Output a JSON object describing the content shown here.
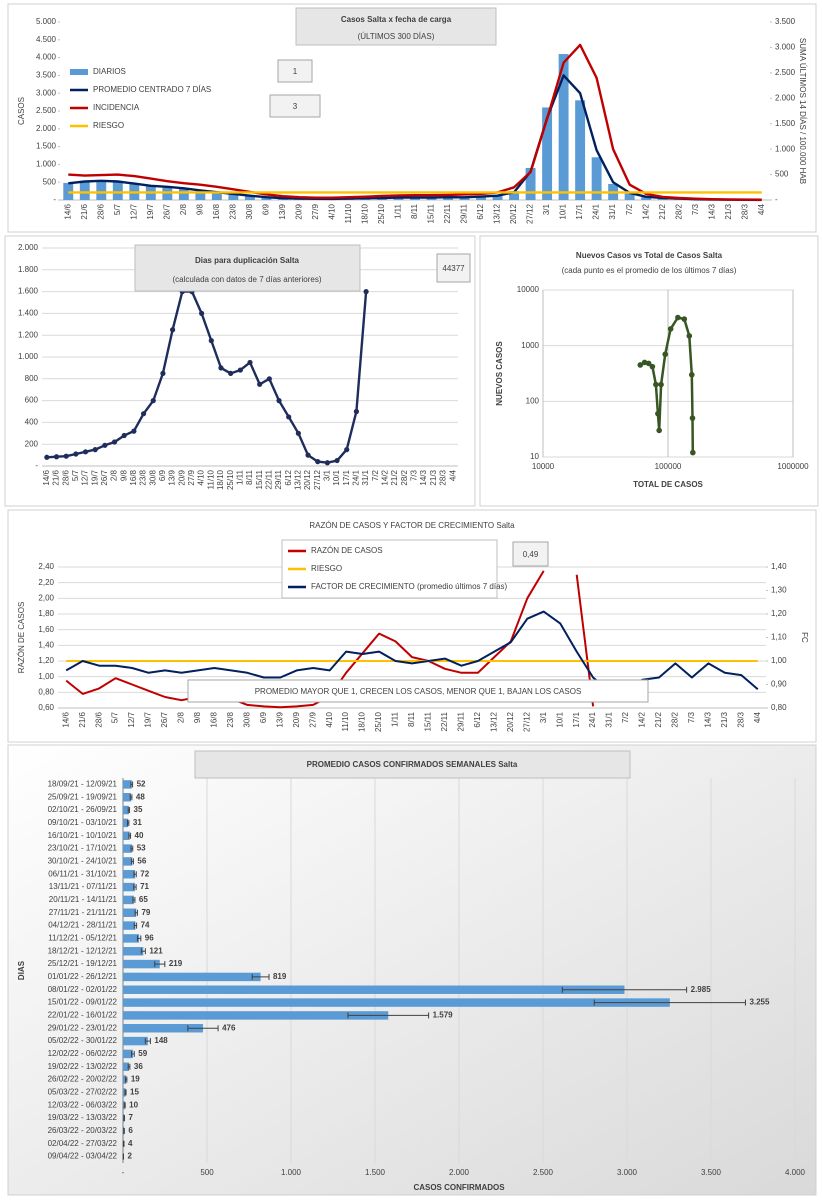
{
  "chart_data": [
    {
      "type": "combo",
      "title": "Casos Salta x fecha de carga",
      "subtitle": "(ÚLTIMOS 300 DÍAS)",
      "y_label": "CASOS",
      "y2_label": "SUMA ÚLTIMOS 14 DÍAS / 100.000 HAB",
      "annotations": [
        "1",
        "3"
      ],
      "categories": [
        "14/6",
        "21/6",
        "28/6",
        "5/7",
        "12/7",
        "19/7",
        "26/7",
        "2/8",
        "9/8",
        "16/8",
        "23/8",
        "30/8",
        "6/9",
        "13/9",
        "20/9",
        "27/9",
        "4/10",
        "11/10",
        "18/10",
        "25/10",
        "1/11",
        "8/11",
        "15/11",
        "22/11",
        "29/11",
        "6/12",
        "13/12",
        "20/12",
        "27/12",
        "3/1",
        "10/1",
        "17/1",
        "24/1",
        "31/1",
        "7/2",
        "14/2",
        "21/2",
        "28/2",
        "7/3",
        "14/3",
        "21/3",
        "28/3",
        "4/4"
      ],
      "ylim": [
        0,
        5000
      ],
      "yticks": [
        {
          "value": 0,
          "label": "-"
        },
        500,
        {
          "value": 1000,
          "label": "1.000"
        },
        {
          "value": 1500,
          "label": "1.500"
        },
        {
          "value": 2000,
          "label": "2.000"
        },
        {
          "value": 2500,
          "label": "2.500"
        },
        {
          "value": 3000,
          "label": "3.000"
        },
        {
          "value": 3500,
          "label": "3.500"
        },
        {
          "value": 4000,
          "label": "4.000"
        },
        {
          "value": 4500,
          "label": "4.500"
        },
        {
          "value": 5000,
          "label": "5.000"
        }
      ],
      "y2lim": [
        0,
        3500
      ],
      "y2ticks": [
        {
          "value": 0,
          "label": "-"
        },
        500,
        {
          "value": 1000,
          "label": "1.000"
        },
        {
          "value": 1500,
          "label": "1.500"
        },
        {
          "value": 2000,
          "label": "2.000"
        },
        {
          "value": 2500,
          "label": "2.500"
        },
        {
          "value": 3000,
          "label": "3.000"
        },
        {
          "value": 3500,
          "label": "3.500"
        }
      ],
      "grid": false,
      "series": [
        {
          "name": "DIARIOS",
          "type": "bar",
          "color": "#5b9bd5",
          "values": [
            480,
            540,
            560,
            500,
            470,
            420,
            380,
            340,
            280,
            230,
            180,
            130,
            90,
            55,
            45,
            40,
            35,
            45,
            55,
            60,
            75,
            70,
            75,
            85,
            80,
            100,
            130,
            250,
            900,
            2600,
            4100,
            2800,
            1200,
            450,
            180,
            80,
            55,
            35,
            20,
            10,
            7,
            4,
            2
          ]
        },
        {
          "name": "PROMEDIO CENTRADO 7 DÍAS",
          "type": "line",
          "color": "#002060",
          "values": [
            470,
            520,
            540,
            520,
            460,
            400,
            370,
            330,
            270,
            220,
            170,
            120,
            80,
            50,
            40,
            35,
            30,
            40,
            50,
            55,
            70,
            70,
            70,
            80,
            75,
            95,
            120,
            220,
            800,
            2300,
            3500,
            3000,
            1400,
            500,
            200,
            90,
            60,
            40,
            20,
            12,
            8,
            5,
            2
          ]
        },
        {
          "name": "INCIDENCIA",
          "type": "line",
          "axis": "y2",
          "color": "#c00000",
          "values": [
            500,
            480,
            490,
            500,
            470,
            420,
            370,
            330,
            300,
            260,
            210,
            160,
            110,
            75,
            55,
            45,
            45,
            55,
            65,
            80,
            90,
            95,
            95,
            100,
            110,
            120,
            150,
            250,
            550,
            1600,
            2700,
            3050,
            2400,
            1000,
            300,
            120,
            60,
            40,
            25,
            15,
            10,
            7,
            5
          ]
        },
        {
          "name": "RIESGO",
          "type": "line",
          "axis": "y2",
          "color": "#ffc000",
          "values": [
            150,
            150,
            150,
            150,
            150,
            150,
            150,
            150,
            150,
            150,
            150,
            150,
            150,
            150,
            150,
            150,
            150,
            150,
            150,
            150,
            150,
            150,
            150,
            150,
            150,
            150,
            150,
            150,
            150,
            150,
            150,
            150,
            150,
            150,
            150,
            150,
            150,
            150,
            150,
            150,
            150,
            150,
            150
          ]
        }
      ]
    },
    {
      "type": "line",
      "title": "Dias para duplicación Salta",
      "subtitle": "(calculada con datos de 7 días anteriores)",
      "annotations": [
        "44377"
      ],
      "categories": [
        "14/6",
        "21/6",
        "28/6",
        "5/7",
        "12/7",
        "19/7",
        "26/7",
        "2/8",
        "9/8",
        "16/8",
        "23/8",
        "30/8",
        "6/9",
        "13/9",
        "20/9",
        "27/9",
        "4/10",
        "11/10",
        "18/10",
        "25/10",
        "1/11",
        "8/11",
        "15/11",
        "22/11",
        "29/11",
        "6/12",
        "13/12",
        "20/12",
        "27/12",
        "3/1",
        "10/1",
        "17/1",
        "24/1",
        "31/1",
        "7/2",
        "14/2",
        "21/2",
        "28/2",
        "7/3",
        "14/3",
        "21/3",
        "28/3",
        "4/4"
      ],
      "values": [
        80,
        85,
        90,
        110,
        130,
        150,
        190,
        220,
        280,
        320,
        480,
        600,
        850,
        1250,
        1600,
        1600,
        1400,
        1150,
        900,
        850,
        880,
        950,
        750,
        800,
        600,
        450,
        300,
        100,
        40,
        30,
        50,
        150,
        500,
        1600,
        null,
        null,
        null,
        null,
        null,
        null,
        null,
        null,
        null
      ],
      "color": "#1f2d5c",
      "markers": true,
      "ylim": [
        0,
        2000
      ],
      "yticks": [
        {
          "value": 0,
          "label": "-"
        },
        200,
        400,
        600,
        800,
        {
          "value": 1000,
          "label": "1.000"
        },
        {
          "value": 1200,
          "label": "1.200"
        },
        {
          "value": 1400,
          "label": "1.400"
        },
        {
          "value": 1600,
          "label": "1.600"
        },
        {
          "value": 1800,
          "label": "1.800"
        },
        {
          "value": 2000,
          "label": "2.000"
        }
      ],
      "grid": true
    },
    {
      "type": "scatter",
      "title": "Nuevos Casos vs Total de Casos Salta",
      "subtitle": "(cada punto es el promedio de los últimos 7 días)",
      "x_label": "TOTAL DE CASOS",
      "y_label": "NUEVOS CASOS",
      "x": [
        60000,
        65000,
        70000,
        75000,
        80000,
        83000,
        85000,
        88000,
        95000,
        105000,
        120000,
        135000,
        148000,
        155000,
        157000,
        158000
      ],
      "y": [
        450,
        500,
        480,
        420,
        200,
        60,
        30,
        200,
        700,
        2000,
        3200,
        3000,
        1500,
        300,
        50,
        12
      ],
      "color": "#375623",
      "log_x": true,
      "log_y": true,
      "xlim": [
        10000,
        1000000
      ],
      "xticks": [
        10000,
        100000,
        1000000
      ],
      "ylim": [
        10,
        10000
      ],
      "yticks": [
        10,
        100,
        1000,
        10000
      ],
      "grid": true
    },
    {
      "type": "combo",
      "title": "RAZÓN DE CASOS Y FACTOR DE CRECIMIENTO Salta",
      "y_label": "RAZÓN DE CASOS",
      "y2_label": "FC",
      "annotations": [
        "0,49",
        "PROMEDIO MAYOR QUE 1, CRECEN LOS CASOS, MENOR QUE 1, BAJAN LOS CASOS"
      ],
      "categories": [
        "14/6",
        "21/6",
        "28/6",
        "5/7",
        "12/7",
        "19/7",
        "26/7",
        "2/8",
        "9/8",
        "16/8",
        "23/8",
        "30/8",
        "6/9",
        "13/9",
        "20/9",
        "27/9",
        "4/10",
        "11/10",
        "18/10",
        "25/10",
        "1/11",
        "8/11",
        "15/11",
        "22/11",
        "29/11",
        "6/12",
        "13/12",
        "20/12",
        "27/12",
        "3/1",
        "10/1",
        "17/1",
        "24/1",
        "31/1",
        "7/2",
        "14/2",
        "21/2",
        "28/2",
        "7/3",
        "14/3",
        "21/3",
        "28/3",
        "4/4"
      ],
      "ylim": [
        0.6,
        2.4
      ],
      "yticks": [
        {
          "value": 0.6,
          "label": "0,60"
        },
        {
          "value": 0.8,
          "label": "0,80"
        },
        {
          "value": 1.0,
          "label": "1,00"
        },
        {
          "value": 1.2,
          "label": "1,20"
        },
        {
          "value": 1.4,
          "label": "1,40"
        },
        {
          "value": 1.6,
          "label": "1,60"
        },
        {
          "value": 1.8,
          "label": "1,80"
        },
        {
          "value": 2.0,
          "label": "2,00"
        },
        {
          "value": 2.2,
          "label": "2,20"
        },
        {
          "value": 2.4,
          "label": "2,40"
        }
      ],
      "y2lim": [
        0.8,
        1.4
      ],
      "y2ticks": [
        {
          "value": 0.8,
          "label": "0,80"
        },
        {
          "value": 0.9,
          "label": "0,90"
        },
        {
          "value": 1.0,
          "label": "1,00"
        },
        {
          "value": 1.1,
          "label": "1,10"
        },
        {
          "value": 1.2,
          "label": "1,20"
        },
        {
          "value": 1.3,
          "label": "1,30"
        },
        {
          "value": 1.4,
          "label": "1,40"
        }
      ],
      "grid": true,
      "series": [
        {
          "name": "RAZÓN DE CASOS",
          "type": "line",
          "color": "#c00000",
          "values": [
            0.95,
            0.78,
            0.85,
            0.98,
            0.9,
            0.82,
            0.74,
            0.7,
            0.74,
            0.78,
            0.72,
            0.64,
            0.62,
            0.61,
            0.62,
            0.64,
            0.75,
            1.05,
            1.3,
            1.55,
            1.45,
            1.25,
            1.2,
            1.1,
            1.05,
            1.05,
            1.25,
            1.45,
            2.0,
            2.35,
            null,
            2.3,
            0.62,
            null,
            null,
            null,
            null,
            null,
            null,
            null,
            null,
            null,
            null
          ]
        },
        {
          "name": "RIESGO",
          "type": "line",
          "color": "#ffc000",
          "values": [
            1.2,
            1.2,
            1.2,
            1.2,
            1.2,
            1.2,
            1.2,
            1.2,
            1.2,
            1.2,
            1.2,
            1.2,
            1.2,
            1.2,
            1.2,
            1.2,
            1.2,
            1.2,
            1.2,
            1.2,
            1.2,
            1.2,
            1.2,
            1.2,
            1.2,
            1.2,
            1.2,
            1.2,
            1.2,
            1.2,
            1.2,
            1.2,
            1.2,
            1.2,
            1.2,
            1.2,
            1.2,
            1.2,
            1.2,
            1.2,
            1.2,
            1.2,
            1.2
          ]
        },
        {
          "name": "FACTOR DE CRECIMIENTO (promedio últimos 7 días)",
          "type": "line",
          "axis": "y2",
          "color": "#002060",
          "values": [
            0.96,
            1.0,
            0.98,
            0.98,
            0.97,
            0.95,
            0.96,
            0.95,
            0.96,
            0.97,
            0.96,
            0.95,
            0.93,
            0.93,
            0.96,
            0.97,
            0.96,
            1.04,
            1.03,
            1.04,
            1.0,
            0.99,
            1.0,
            1.01,
            0.98,
            1.0,
            1.04,
            1.08,
            1.18,
            1.21,
            1.16,
            1.04,
            0.93,
            0.87,
            0.89,
            0.92,
            0.93,
            0.99,
            0.93,
            0.99,
            0.95,
            0.94,
            0.88
          ]
        }
      ]
    },
    {
      "type": "hbar",
      "title": "PROMEDIO CASOS CONFIRMADOS SEMANALES Salta",
      "x_label": "CASOS CONFIRMADOS",
      "y_label": "DIAS",
      "categories": [
        "18/09/21 - 12/09/21",
        "25/09/21 - 19/09/21",
        "02/10/21 - 26/09/21",
        "09/10/21 - 03/10/21",
        "16/10/21 - 10/10/21",
        "23/10/21 - 17/10/21",
        "30/10/21 - 24/10/21",
        "06/11/21 - 31/10/21",
        "13/11/21 - 07/11/21",
        "20/11/21 - 14/11/21",
        "27/11/21 - 21/11/21",
        "04/12/21 - 28/11/21",
        "11/12/21 - 05/12/21",
        "18/12/21 - 12/12/21",
        "25/12/21 - 19/12/21",
        "01/01/22 - 26/12/21",
        "08/01/22 - 02/01/22",
        "15/01/22 - 09/01/22",
        "22/01/22 - 16/01/22",
        "29/01/22 - 23/01/22",
        "05/02/22 - 30/01/22",
        "12/02/22 - 06/02/22",
        "19/02/22 - 13/02/22",
        "26/02/22 - 20/02/22",
        "05/03/22 - 27/02/22",
        "12/03/22 - 06/03/22",
        "19/03/22 - 13/03/22",
        "26/03/22 - 20/03/22",
        "02/04/22 - 27/03/22",
        "09/04/22 - 03/04/22"
      ],
      "values": [
        52,
        48,
        35,
        31,
        40,
        53,
        56,
        72,
        71,
        65,
        79,
        74,
        96,
        121,
        219,
        819,
        2985,
        3255,
        1579,
        476,
        148,
        59,
        36,
        19,
        15,
        10,
        7,
        6,
        4,
        2
      ],
      "value_labels": [
        "52",
        "48",
        "35",
        "31",
        "40",
        "53",
        "56",
        "72",
        "71",
        "65",
        "79",
        "74",
        "96",
        "121",
        "219",
        "819",
        "2.985",
        "3.255",
        "1.579",
        "476",
        "148",
        "59",
        "36",
        "19",
        "15",
        "10",
        "7",
        "6",
        "4",
        "2"
      ],
      "errors": [
        5,
        5,
        4,
        4,
        5,
        5,
        6,
        7,
        7,
        6,
        7,
        7,
        10,
        12,
        30,
        50,
        370,
        450,
        240,
        90,
        15,
        8,
        5,
        4,
        3,
        3,
        2,
        2,
        2,
        1
      ],
      "color": "#5b9bd5",
      "xlim": [
        0,
        4000
      ],
      "xticks": [
        {
          "value": 0,
          "label": "-"
        },
        500,
        {
          "value": 1000,
          "label": "1.000"
        },
        {
          "value": 1500,
          "label": "1.500"
        },
        {
          "value": 2000,
          "label": "2.000"
        },
        {
          "value": 2500,
          "label": "2.500"
        },
        {
          "value": 3000,
          "label": "3.000"
        },
        {
          "value": 3500,
          "label": "3.500"
        },
        {
          "value": 4000,
          "label": "4.000"
        }
      ],
      "grid": true
    }
  ]
}
